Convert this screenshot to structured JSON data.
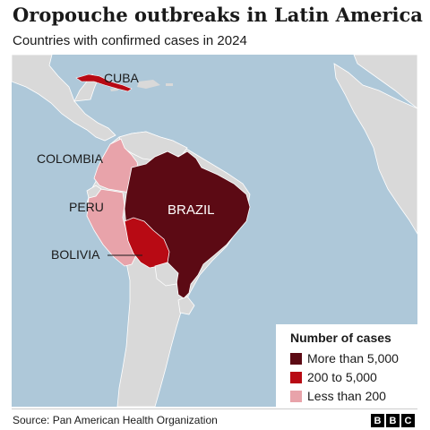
{
  "header": {
    "title": "Oropouche outbreaks in Latin America",
    "subtitle": "Countries with confirmed cases in 2024"
  },
  "map": {
    "colors": {
      "ocean": "#aec8d9",
      "land": "#d9d9d9",
      "more_than_5000": "#5c0a14",
      "between_200_5000": "#b80a14",
      "less_than_200": "#e8a3aa"
    },
    "countries": [
      {
        "name": "CUBA",
        "category": "200 to 5,000"
      },
      {
        "name": "COLOMBIA",
        "category": "Less than 200"
      },
      {
        "name": "PERU",
        "category": "Less than 200"
      },
      {
        "name": "BRAZIL",
        "category": "More than 5,000"
      },
      {
        "name": "BOLIVIA",
        "category": "200 to 5,000"
      }
    ]
  },
  "legend": {
    "title": "Number of cases",
    "items": [
      {
        "label": "More than 5,000",
        "color": "#5c0a14"
      },
      {
        "label": "200 to 5,000",
        "color": "#b80a14"
      },
      {
        "label": "Less than 200",
        "color": "#e8a3aa"
      }
    ]
  },
  "footer": {
    "source": "Source: Pan American Health Organization",
    "logo": [
      "B",
      "B",
      "C"
    ]
  }
}
